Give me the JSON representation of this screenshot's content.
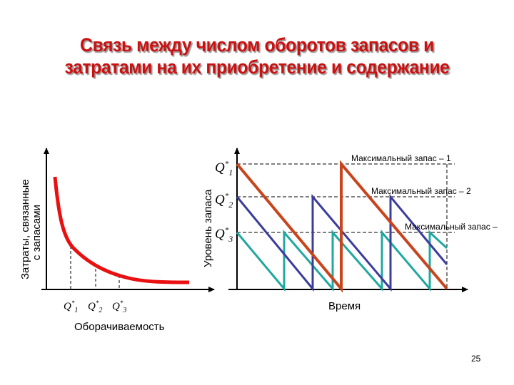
{
  "title": {
    "line1": "Связь между числом оборотов запасов и",
    "line2": "затратами на их приобретение и содержание"
  },
  "left_diagram": {
    "y_label_line1": "Затраты, связанные",
    "y_label_line2": "с запасами",
    "x_label": "Оборачиваемость",
    "q_labels": [
      {
        "base": "Q",
        "sup": "*",
        "sub": "1"
      },
      {
        "base": "Q",
        "sup": "*",
        "sub": "2"
      },
      {
        "base": "Q",
        "sup": "*",
        "sub": "3"
      }
    ],
    "curve_color": "#e81010"
  },
  "right_diagram": {
    "y_label": "Уровень запаса",
    "x_label": "Время",
    "q_labels": [
      {
        "base": "Q",
        "sup": "*",
        "sub": "1"
      },
      {
        "base": "Q",
        "sup": "*",
        "sub": "2"
      },
      {
        "base": "Q",
        "sup": "*",
        "sub": "3"
      }
    ],
    "max_labels": [
      "Максимальный запас – 1",
      "Максимальный запас – 2",
      "Максимальный запас –"
    ],
    "series_colors": [
      "#c8441c",
      "#3c3c9c",
      "#20a8a0"
    ]
  },
  "page_number": "25"
}
